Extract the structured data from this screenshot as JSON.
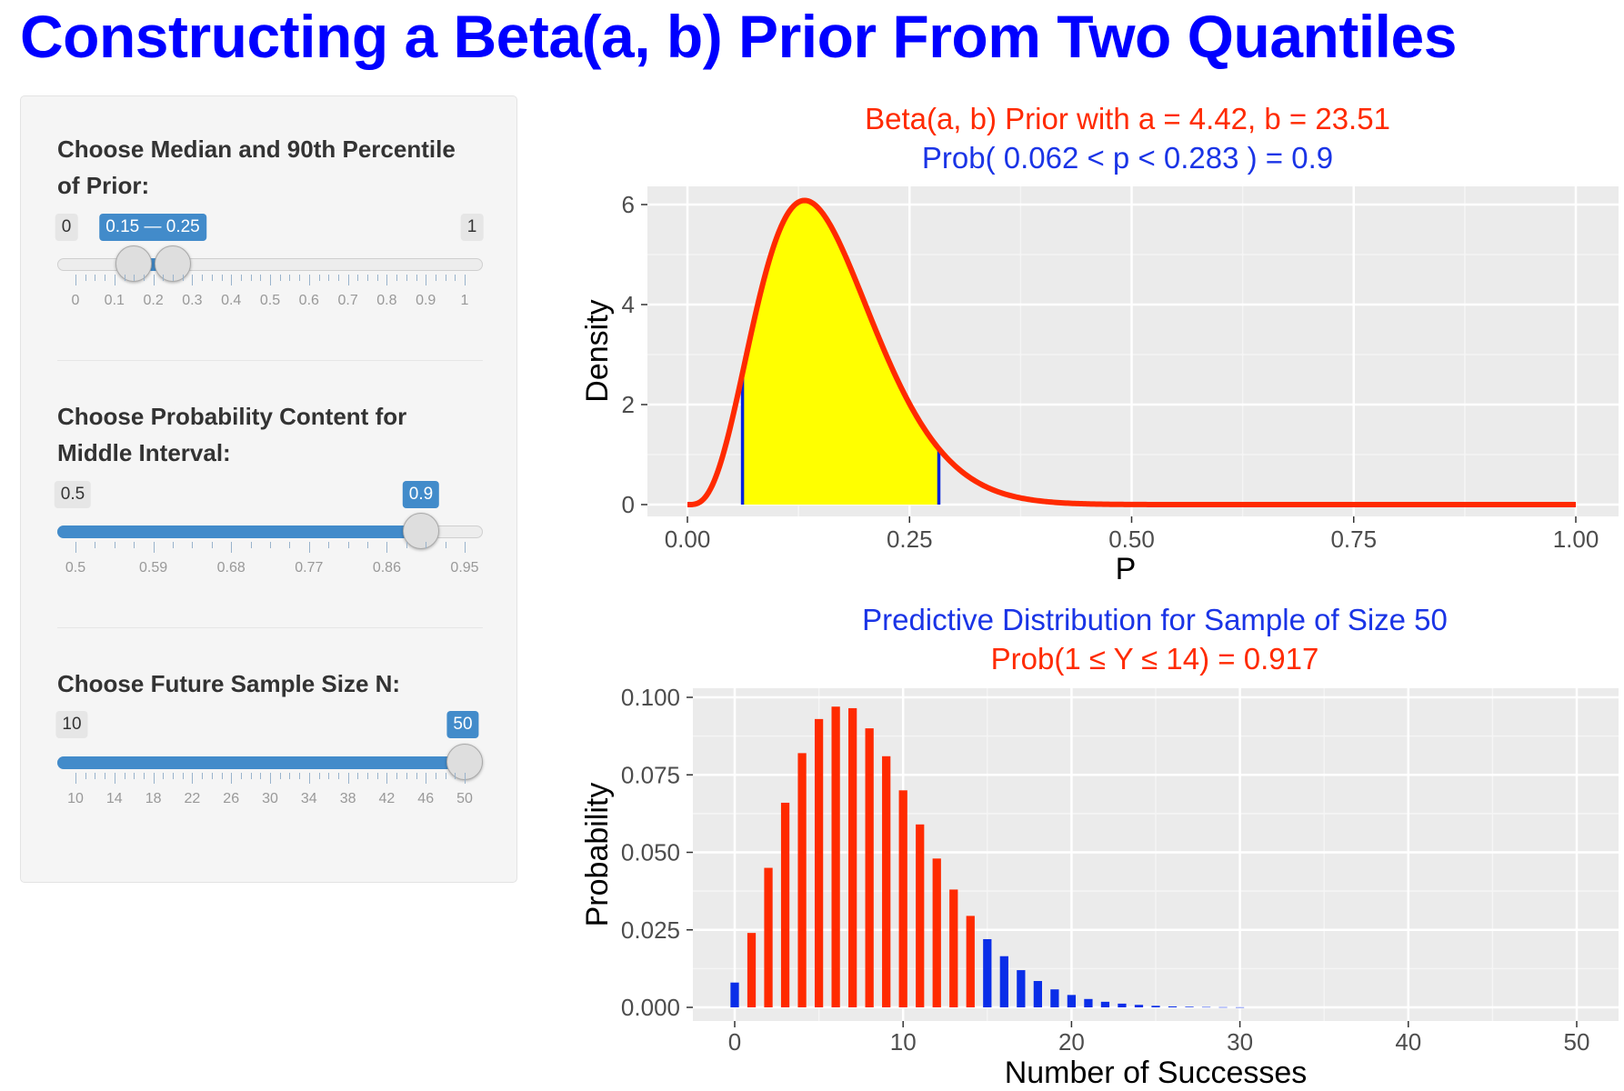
{
  "title": "Constructing a Beta(a, b) Prior From Two Quantiles",
  "sidebar": {
    "quantile_slider": {
      "label": "Choose Median and 90th Percentile of Prior:",
      "min_label": "0",
      "max_label": "1",
      "value_label": "0.15 — 0.25",
      "min": 0,
      "max": 1,
      "low": 0.15,
      "high": 0.25,
      "tick_labels": [
        "0",
        "0.1",
        "0.2",
        "0.3",
        "0.4",
        "0.5",
        "0.6",
        "0.7",
        "0.8",
        "0.9",
        "1"
      ]
    },
    "prob_slider": {
      "label": "Choose Probability Content for Middle Interval:",
      "min_label": "0.5",
      "max_label": "",
      "value_label": "0.9",
      "min": 0.5,
      "max": 0.95,
      "value": 0.9,
      "tick_labels": [
        "0.5",
        "0.59",
        "0.68",
        "0.77",
        "0.86",
        "0.95"
      ]
    },
    "size_slider": {
      "label": "Choose Future Sample Size N:",
      "min_label": "10",
      "max_label": "",
      "value_label": "50",
      "min": 10,
      "max": 50,
      "value": 50,
      "tick_labels": [
        "10",
        "14",
        "18",
        "22",
        "26",
        "30",
        "34",
        "38",
        "42",
        "46",
        "50"
      ]
    }
  },
  "chart_data": [
    {
      "type": "area",
      "title": "Beta(a, b) Prior with a = 4.42, b = 23.51",
      "subtitle": "Prob( 0.062 < p < 0.283 ) = 0.9",
      "xlabel": "P",
      "ylabel": "Density",
      "xlim": [
        0,
        1
      ],
      "ylim": [
        0,
        6
      ],
      "xticks": [
        "0.00",
        "0.25",
        "0.50",
        "0.75",
        "1.00"
      ],
      "yticks": [
        "0",
        "2",
        "4",
        "6"
      ],
      "a": 4.42,
      "b": 23.51,
      "interval": [
        0.062,
        0.283
      ],
      "colors": {
        "curve": "#ff2a00",
        "fill": "#ffff00",
        "bounds": "#0022dd",
        "title": "#ff2a00",
        "subtitle": "#1a34e6"
      }
    },
    {
      "type": "bar",
      "title": "Predictive Distribution for Sample of Size 50",
      "subtitle": "Prob(1 ≤ Y ≤ 14) = 0.917",
      "xlabel": "Number of Successes",
      "ylabel": "Probability",
      "xlim": [
        0,
        50
      ],
      "ylim": [
        0,
        0.1
      ],
      "xticks": [
        "0",
        "10",
        "20",
        "30",
        "40",
        "50"
      ],
      "yticks": [
        "0.000",
        "0.025",
        "0.050",
        "0.075",
        "0.100"
      ],
      "x": [
        0,
        1,
        2,
        3,
        4,
        5,
        6,
        7,
        8,
        9,
        10,
        11,
        12,
        13,
        14,
        15,
        16,
        17,
        18,
        19,
        20,
        21,
        22,
        23,
        24,
        25,
        26,
        27,
        28,
        29,
        30
      ],
      "values": [
        0.008,
        0.024,
        0.045,
        0.066,
        0.082,
        0.093,
        0.097,
        0.0965,
        0.09,
        0.081,
        0.07,
        0.059,
        0.048,
        0.038,
        0.0295,
        0.022,
        0.0165,
        0.012,
        0.0085,
        0.0058,
        0.004,
        0.0027,
        0.0018,
        0.0012,
        0.0008,
        0.0005,
        0.0003,
        0.0002,
        0.00012,
        7e-05,
        4e-05
      ],
      "highlight_range": [
        1,
        14
      ],
      "colors": {
        "inside": "#ff2a00",
        "outside": "#0a2ee8",
        "title": "#1a34e6",
        "subtitle": "#ff2a00"
      }
    }
  ]
}
